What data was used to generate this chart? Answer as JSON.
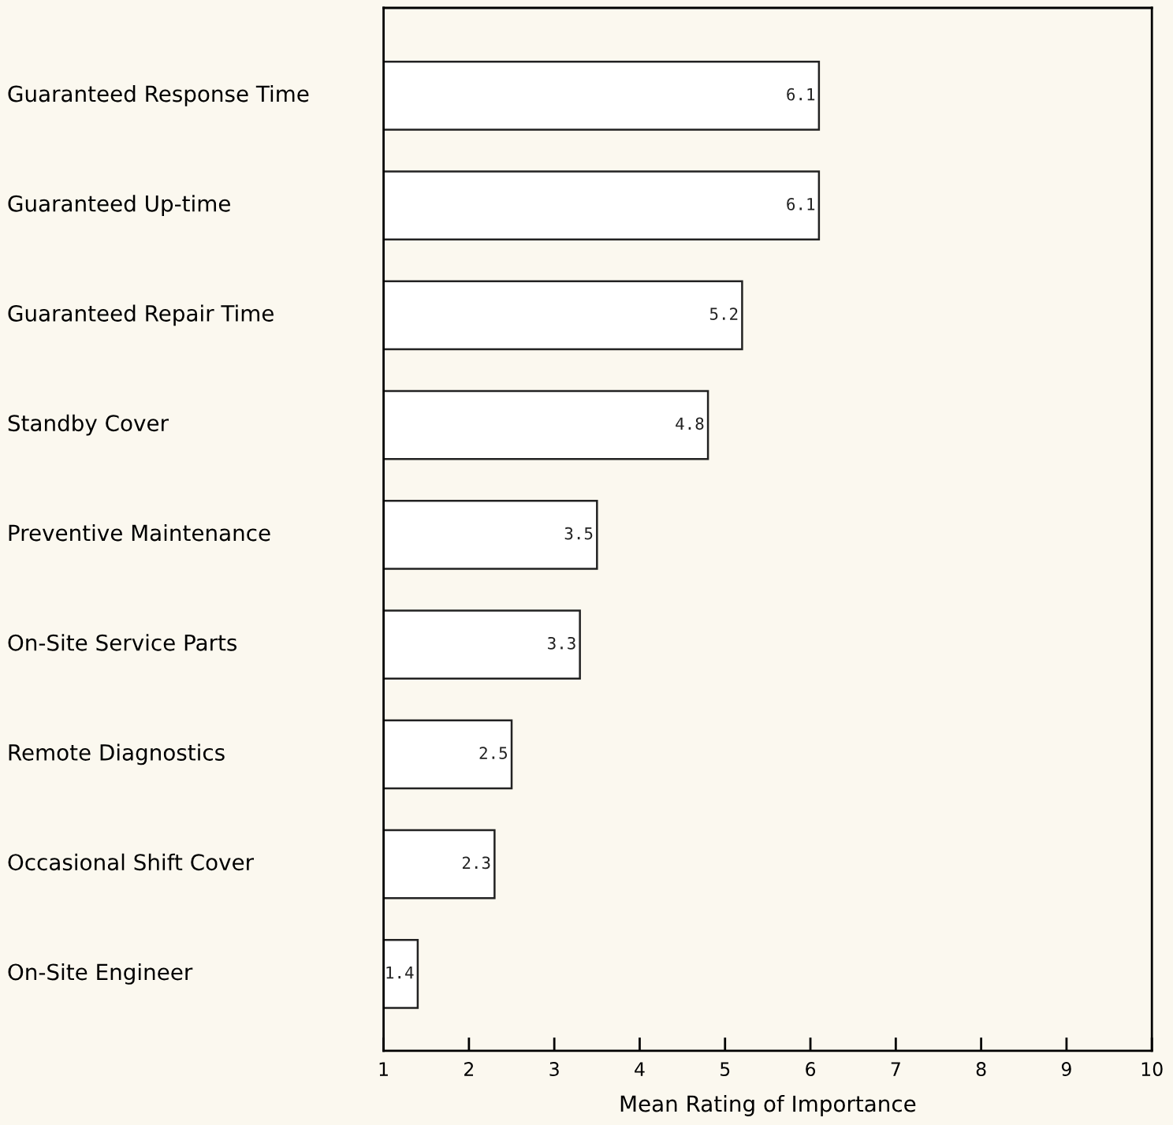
{
  "chart_data": {
    "type": "bar",
    "orientation": "horizontal",
    "xlabel": "Mean Rating of Importance",
    "categories": [
      "Guaranteed Response Time",
      "Guaranteed Up-time",
      "Guaranteed Repair Time",
      "Standby Cover",
      "Preventive Maintenance",
      "On-Site Service Parts",
      "Remote Diagnostics",
      "Occasional Shift Cover",
      "On-Site Engineer"
    ],
    "values": [
      6.1,
      6.1,
      5.2,
      4.8,
      3.5,
      3.3,
      2.5,
      2.3,
      1.4
    ],
    "color": "#ffffff",
    "xlim": [
      1,
      10
    ],
    "xticks": [
      1,
      2,
      3,
      4,
      5,
      6,
      7,
      8,
      9,
      10
    ],
    "data_labels": true,
    "grid": false
  }
}
